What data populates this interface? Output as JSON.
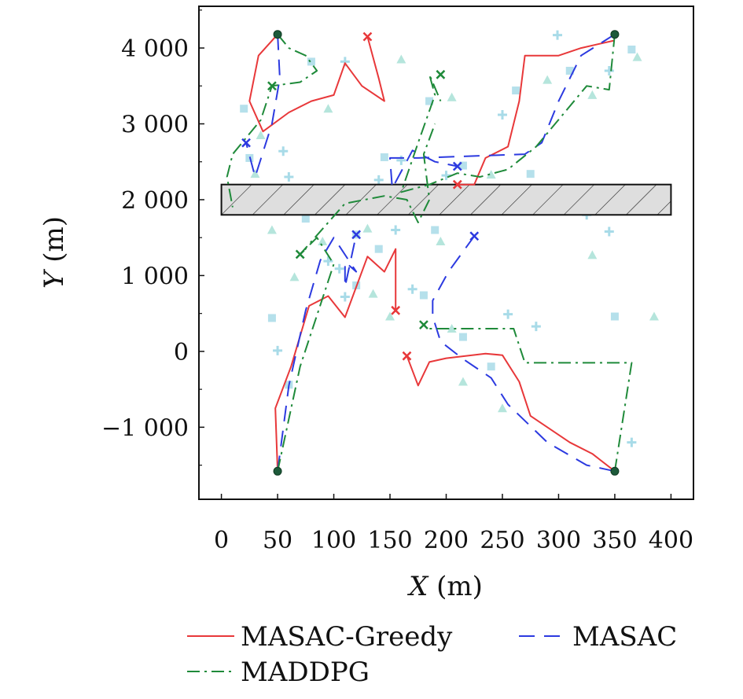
{
  "chart_data": {
    "type": "line",
    "xlabel_var": "X",
    "xlabel_unit": " (m)",
    "ylabel_var": "Y",
    "ylabel_unit": " (m)",
    "xlim": [
      -20,
      420
    ],
    "ylim": [
      -1950,
      4550
    ],
    "xticks": [
      0,
      50,
      100,
      150,
      200,
      250,
      300,
      350,
      400
    ],
    "xtick_labels": [
      "0",
      "50",
      "100",
      "150",
      "200",
      "250",
      "300",
      "350",
      "400"
    ],
    "yticks": [
      -1000,
      0,
      1000,
      2000,
      3000,
      4000
    ],
    "ytick_labels": [
      "−1 000",
      "0",
      "1 000",
      "2 000",
      "3 000",
      "4 000"
    ],
    "grid": false,
    "legend_position": "bottom",
    "obstacle": {
      "x": [
        0,
        400
      ],
      "y": [
        1800,
        2200
      ]
    },
    "start_points": [
      {
        "x": 50,
        "y": 4180
      },
      {
        "x": 350,
        "y": 4180
      },
      {
        "x": 50,
        "y": -1580
      },
      {
        "x": 350,
        "y": -1580
      }
    ],
    "sensor_points": [
      [
        20,
        3200
      ],
      [
        35,
        2850
      ],
      [
        55,
        2640
      ],
      [
        80,
        3820
      ],
      [
        95,
        3200
      ],
      [
        110,
        3820
      ],
      [
        25,
        2550
      ],
      [
        30,
        2340
      ],
      [
        60,
        2300
      ],
      [
        75,
        1750
      ],
      [
        90,
        1450
      ],
      [
        95,
        1190
      ],
      [
        120,
        1540
      ],
      [
        130,
        1620
      ],
      [
        140,
        2260
      ],
      [
        145,
        2560
      ],
      [
        160,
        3850
      ],
      [
        160,
        2520
      ],
      [
        185,
        3300
      ],
      [
        205,
        3350
      ],
      [
        155,
        1600
      ],
      [
        190,
        1600
      ],
      [
        195,
        1450
      ],
      [
        200,
        2320
      ],
      [
        215,
        2450
      ],
      [
        240,
        2330
      ],
      [
        250,
        3120
      ],
      [
        262,
        3440
      ],
      [
        290,
        3580
      ],
      [
        299,
        4170
      ],
      [
        310,
        3700
      ],
      [
        330,
        3380
      ],
      [
        345,
        3700
      ],
      [
        365,
        3980
      ],
      [
        370,
        3880
      ],
      [
        325,
        1800
      ],
      [
        275,
        2340
      ],
      [
        330,
        1270
      ],
      [
        345,
        1580
      ],
      [
        350,
        460
      ],
      [
        385,
        460
      ],
      [
        365,
        -1200
      ],
      [
        240,
        -200
      ],
      [
        250,
        -750
      ],
      [
        280,
        330
      ],
      [
        215,
        190
      ],
      [
        215,
        -400
      ],
      [
        255,
        490
      ],
      [
        45,
        440
      ],
      [
        150,
        460
      ],
      [
        170,
        820
      ],
      [
        180,
        740
      ],
      [
        205,
        300
      ],
      [
        105,
        1090
      ],
      [
        120,
        870
      ],
      [
        135,
        760
      ],
      [
        50,
        10
      ],
      [
        60,
        -440
      ],
      [
        65,
        980
      ],
      [
        110,
        720
      ],
      [
        140,
        1350
      ],
      [
        45,
        1600
      ]
    ],
    "series": [
      {
        "name": "MASAC-Greedy",
        "color": "#e8383a",
        "dash": "",
        "segments": [
          [
            [
              50,
              4180
            ],
            [
              33,
              3900
            ],
            [
              25,
              3300
            ],
            [
              37,
              2900
            ],
            [
              60,
              3150
            ],
            [
              80,
              3300
            ],
            [
              100,
              3380
            ],
            [
              110,
              3800
            ],
            [
              125,
              3500
            ],
            [
              145,
              3300
            ],
            [
              140,
              3600
            ],
            [
              130,
              4150
            ]
          ],
          [
            [
              350,
              4100
            ],
            [
              335,
              4050
            ],
            [
              320,
              4000
            ],
            [
              300,
              3900
            ],
            [
              270,
              3900
            ],
            [
              265,
              3300
            ],
            [
              255,
              2700
            ],
            [
              235,
              2550
            ],
            [
              225,
              2200
            ],
            [
              210,
              2200
            ]
          ],
          [
            [
              50,
              -1580
            ],
            [
              48,
              -750
            ],
            [
              62,
              -200
            ],
            [
              78,
              600
            ],
            [
              95,
              730
            ],
            [
              110,
              450
            ],
            [
              130,
              1250
            ],
            [
              145,
              1050
            ],
            [
              155,
              1350
            ],
            [
              155,
              540
            ]
          ],
          [
            [
              350,
              -1580
            ],
            [
              330,
              -1350
            ],
            [
              310,
              -1200
            ],
            [
              275,
              -850
            ],
            [
              265,
              -400
            ],
            [
              250,
              -50
            ],
            [
              235,
              -30
            ],
            [
              200,
              -90
            ],
            [
              185,
              -140
            ],
            [
              175,
              -450
            ],
            [
              165,
              -60
            ]
          ]
        ],
        "markers": [
          [
            130,
            4150
          ],
          [
            210,
            2200
          ],
          [
            155,
            540
          ],
          [
            165,
            -60
          ]
        ]
      },
      {
        "name": "MASAC",
        "color": "#2c3ae0",
        "dash": "20,12",
        "segments": [
          [
            [
              50,
              4180
            ],
            [
              52,
              3600
            ],
            [
              45,
              3000
            ],
            [
              30,
              2300
            ],
            [
              22,
              2750
            ]
          ],
          [
            [
              350,
              4180
            ],
            [
              320,
              3900
            ],
            [
              300,
              3300
            ],
            [
              285,
              2750
            ],
            [
              270,
              2600
            ],
            [
              175,
              2550
            ],
            [
              150,
              2550
            ],
            [
              152,
              2150
            ],
            [
              170,
              2650
            ],
            [
              190,
              2500
            ],
            [
              210,
              2440
            ]
          ],
          [
            [
              50,
              -1580
            ],
            [
              60,
              -450
            ],
            [
              75,
              540
            ],
            [
              88,
              1200
            ],
            [
              100,
              1500
            ],
            [
              120,
              1050
            ],
            [
              110,
              1180
            ],
            [
              110,
              850
            ],
            [
              120,
              1540
            ]
          ],
          [
            [
              350,
              -1580
            ],
            [
              325,
              -1500
            ],
            [
              290,
              -1200
            ],
            [
              255,
              -700
            ],
            [
              240,
              -350
            ],
            [
              215,
              -100
            ],
            [
              195,
              130
            ],
            [
              188,
              460
            ],
            [
              188,
              670
            ],
            [
              202,
              1050
            ],
            [
              225,
              1520
            ]
          ]
        ],
        "markers": [
          [
            22,
            2750
          ],
          [
            210,
            2440
          ],
          [
            120,
            1540
          ],
          [
            225,
            1520
          ]
        ]
      },
      {
        "name": "MADDPG",
        "color": "#1f8a3a",
        "dash": "16,6,3,6",
        "segments": [
          [
            [
              50,
              4180
            ],
            [
              60,
              4000
            ],
            [
              75,
              3900
            ],
            [
              85,
              3700
            ],
            [
              70,
              3550
            ],
            [
              45,
              3500
            ],
            [
              35,
              3050
            ],
            [
              10,
              2600
            ],
            [
              5,
              2300
            ],
            [
              10,
              1900
            ]
          ],
          [
            [
              350,
              4180
            ],
            [
              345,
              3450
            ],
            [
              325,
              3500
            ],
            [
              280,
              2700
            ],
            [
              255,
              2400
            ],
            [
              230,
              2300
            ],
            [
              210,
              2350
            ],
            [
              185,
              2200
            ],
            [
              160,
              2100
            ],
            [
              175,
              2750
            ],
            [
              190,
              3380
            ],
            [
              185,
              3650
            ],
            [
              195,
              3300
            ]
          ],
          [
            [
              50,
              -1580
            ],
            [
              70,
              -200
            ],
            [
              100,
              1150
            ],
            [
              85,
              1500
            ],
            [
              70,
              1280
            ],
            [
              110,
              1950
            ],
            [
              145,
              2050
            ],
            [
              165,
              2000
            ],
            [
              175,
              1700
            ],
            [
              185,
              2000
            ],
            [
              180,
              2600
            ],
            [
              190,
              3000
            ]
          ],
          [
            [
              350,
              -1580
            ],
            [
              365,
              -150
            ],
            [
              270,
              -150
            ],
            [
              260,
              300
            ],
            [
              185,
              300
            ],
            [
              180,
              350
            ]
          ]
        ],
        "markers": [
          [
            195,
            3650
          ],
          [
            45,
            3500
          ],
          [
            70,
            1280
          ],
          [
            180,
            350
          ]
        ]
      }
    ]
  }
}
